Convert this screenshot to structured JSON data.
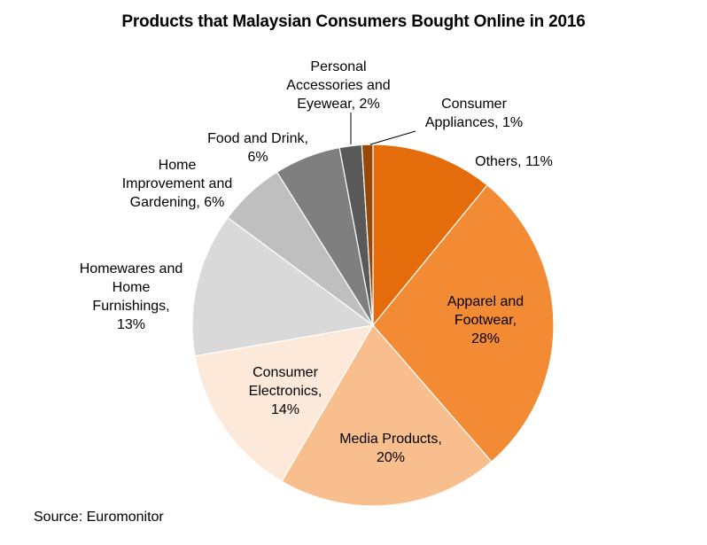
{
  "chart_data": {
    "type": "pie",
    "title": "Products that Malaysian Consumers Bought Online in 2016",
    "source": "Source: Euromonitor",
    "slices": [
      {
        "name": "Others",
        "value": 11,
        "color": "#E46C0A",
        "label_lines": [
          "Others, 11%"
        ]
      },
      {
        "name": "Apparel and Footwear",
        "value": 28,
        "color": "#F38B34",
        "label_lines": [
          "Apparel and",
          "Footwear,",
          "28%"
        ]
      },
      {
        "name": "Media Products",
        "value": 20,
        "color": "#F9BE8D",
        "label_lines": [
          "Media Products,",
          "20%"
        ]
      },
      {
        "name": "Consumer Electronics",
        "value": 14,
        "color": "#FDE9D9",
        "label_lines": [
          "Consumer",
          "Electronics,",
          "14%"
        ]
      },
      {
        "name": "Homewares and Home Furnishings",
        "value": 13,
        "color": "#D9D9D9",
        "label_lines": [
          "Homewares and",
          "Home",
          "Furnishings,",
          "13%"
        ]
      },
      {
        "name": "Home Improvement and Gardening",
        "value": 6,
        "color": "#BFBFBF",
        "label_lines": [
          "Home",
          "Improvement and",
          "Gardening, 6%"
        ]
      },
      {
        "name": "Food and Drink",
        "value": 6,
        "color": "#7F7F7F",
        "label_lines": [
          "Food and Drink,",
          "6%"
        ]
      },
      {
        "name": "Personal Accessories and Eyewear",
        "value": 2,
        "color": "#595959",
        "label_lines": [
          "Personal",
          "Accessories and",
          "Eyewear, 2%"
        ]
      },
      {
        "name": "Consumer Appliances",
        "value": 1,
        "color": "#974706",
        "label_lines": [
          "Consumer",
          "Appliances, 1%"
        ]
      }
    ]
  }
}
